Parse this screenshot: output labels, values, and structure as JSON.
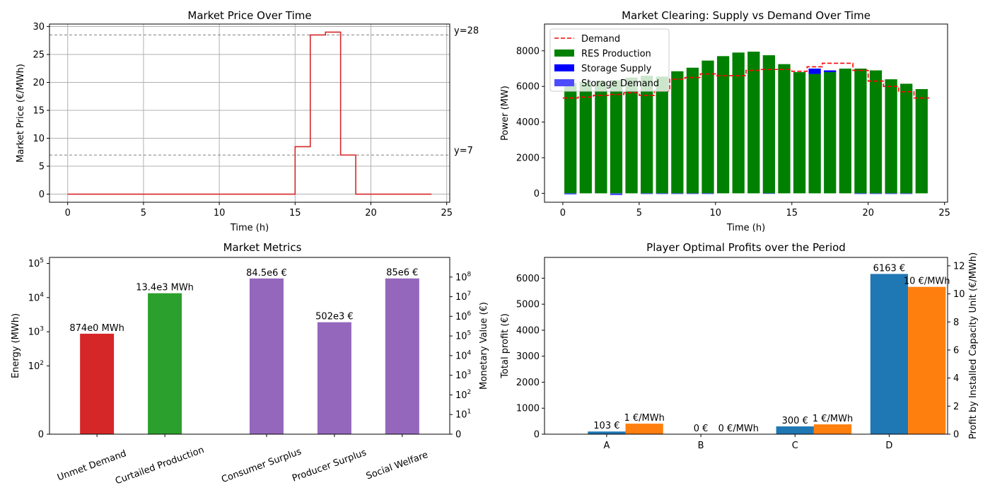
{
  "chart_data": [
    {
      "type": "line",
      "title": "Market Price Over Time",
      "xlabel": "Time (h)",
      "ylabel": "Market Price (€/MWh)",
      "xlim": [
        -1.2,
        25.2
      ],
      "ylim": [
        -1.45,
        30.45
      ],
      "xticks": [
        0,
        5,
        10,
        15,
        20,
        25
      ],
      "yticks": [
        0,
        5,
        10,
        15,
        20,
        25,
        30
      ],
      "grid": true,
      "step": true,
      "x": [
        0,
        1,
        2,
        3,
        4,
        5,
        6,
        7,
        8,
        9,
        10,
        11,
        12,
        13,
        14,
        15,
        16,
        17,
        18,
        19,
        20,
        21,
        22,
        23,
        24
      ],
      "series": [
        {
          "values": [
            0,
            0,
            0,
            0,
            0,
            0,
            0,
            0,
            0,
            0,
            0,
            0,
            0,
            0,
            0,
            8.5,
            28.5,
            29.0,
            7.0,
            0,
            0,
            0,
            0,
            0,
            0
          ],
          "color": "#d62728"
        }
      ],
      "hlines": [
        {
          "y": 28.5,
          "label": "y=28",
          "color": "#808080"
        },
        {
          "y": 7.0,
          "label": "y=7",
          "color": "#808080"
        }
      ]
    },
    {
      "type": "bar",
      "title": "Market Clearing: Supply vs Demand Over Time",
      "xlabel": "Time (h)",
      "ylabel": "Power (MW)",
      "xlim": [
        -1.2,
        25.2
      ],
      "ylim": [
        -500,
        9500
      ],
      "xticks": [
        0,
        5,
        10,
        15,
        20,
        25
      ],
      "yticks": [
        0,
        2000,
        4000,
        6000,
        8000
      ],
      "legend": "upper-left",
      "x": [
        0.5,
        1.5,
        2.5,
        3.5,
        4.5,
        5.5,
        6.5,
        7.5,
        8.5,
        9.5,
        10.5,
        11.5,
        12.5,
        13.5,
        14.5,
        15.5,
        16.5,
        17.5,
        18.5,
        19.5,
        20.5,
        21.5,
        22.5,
        23.5
      ],
      "series": [
        {
          "name": "RES Production",
          "color": "#008000",
          "values": [
            6200,
            6250,
            6300,
            6350,
            6500,
            6600,
            6550,
            6850,
            7050,
            7450,
            7700,
            7900,
            7950,
            7750,
            7250,
            6800,
            6700,
            6800,
            7000,
            7000,
            6900,
            6400,
            6150,
            5850
          ]
        },
        {
          "name": "Storage Supply",
          "color": "#0000ff",
          "values": [
            0,
            0,
            0,
            0,
            0,
            0,
            0,
            0,
            0,
            0,
            0,
            0,
            0,
            0,
            0,
            0,
            300,
            100,
            0,
            0,
            0,
            0,
            0,
            0
          ]
        },
        {
          "name": "Storage Demand",
          "color": "#4d4dff",
          "values": [
            -60,
            0,
            0,
            -100,
            0,
            -40,
            -40,
            -40,
            -40,
            -40,
            0,
            0,
            0,
            -30,
            0,
            0,
            0,
            0,
            0,
            -40,
            -40,
            -40,
            -40,
            0
          ]
        },
        {
          "name": "Demand",
          "color": "#ff0000",
          "line": true,
          "x": [
            0,
            1,
            2,
            3,
            4,
            5,
            6,
            7,
            8,
            9,
            10,
            11,
            12,
            13,
            14,
            15,
            16,
            17,
            18,
            19,
            20,
            21,
            22,
            23,
            24
          ],
          "values": [
            5350,
            5400,
            5500,
            5550,
            5650,
            5500,
            5750,
            6400,
            6500,
            6700,
            6600,
            6600,
            6900,
            6950,
            6950,
            6850,
            7100,
            7300,
            7300,
            6900,
            6300,
            6000,
            5700,
            5350,
            5350
          ]
        }
      ]
    },
    {
      "type": "bar",
      "title": "Market Metrics",
      "ylabel": "Energy (MWh)",
      "ylabel_right": "Monetary Value (€)",
      "yscale": "symlog",
      "categories": [
        "Unmet Demand",
        "Curtailed Production",
        "Consumer Surplus",
        "Producer Surplus",
        "Social Welfare"
      ],
      "positions": [
        0,
        1,
        2.5,
        3.5,
        4.5
      ],
      "values": [
        874,
        13400,
        84500000,
        502000,
        85000000
      ],
      "labels": [
        "874e0 MWh",
        "13.4e3 MWh",
        "84.5e6 €",
        "502e3 €",
        "85e6 €"
      ],
      "axis": [
        "left",
        "left",
        "right",
        "right",
        "right"
      ],
      "colors": [
        "#d62728",
        "#2ca02c",
        "#9467bd",
        "#9467bd",
        "#9467bd"
      ],
      "ylim_left": [
        0,
        150000
      ],
      "ylim_right": [
        0,
        1000000000
      ],
      "yticks_left": [
        "0",
        "10^2",
        "10^3",
        "10^4",
        "10^5"
      ],
      "yticks_right": [
        "0",
        "10^1",
        "10^2",
        "10^3",
        "10^4",
        "10^5",
        "10^6",
        "10^7",
        "10^8"
      ]
    },
    {
      "type": "bar",
      "title": "Player Optimal Profits over the Period",
      "ylabel": "Total profit (€)",
      "ylabel_right": "Profit by Installed Capacity Unit (€/MWh)",
      "categories": [
        "A",
        "B",
        "C",
        "D"
      ],
      "ylim": [
        0,
        6800
      ],
      "ylim_right": [
        0,
        12.6
      ],
      "yticks": [
        0,
        1000,
        2000,
        3000,
        4000,
        5000,
        6000
      ],
      "yticks_right": [
        0,
        2,
        4,
        6,
        8,
        10,
        12
      ],
      "series": [
        {
          "axis": "left",
          "color": "#1f77b4",
          "values": [
            103,
            0,
            300,
            6163
          ],
          "labels": [
            "103 €",
            "0 €",
            "300 €",
            "6163 €"
          ]
        },
        {
          "axis": "right",
          "color": "#ff7f0e",
          "values": [
            0.75,
            0,
            0.7,
            10.5
          ],
          "labels": [
            "1 €/MWh",
            "0 €/MWh",
            "1 €/MWh",
            "10 €/MWh"
          ]
        }
      ]
    }
  ]
}
